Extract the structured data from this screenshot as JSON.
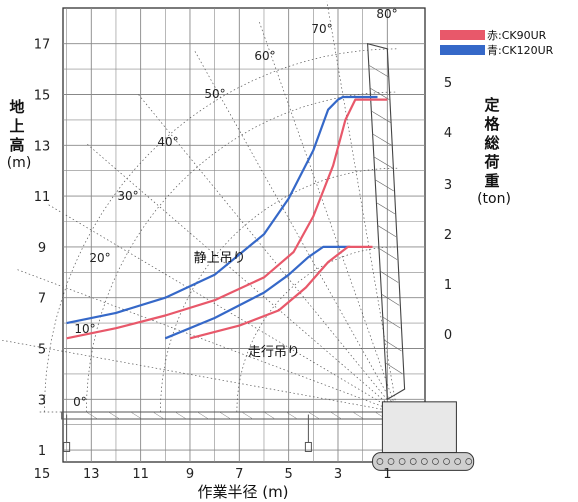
{
  "chart_data": {
    "type": "line",
    "title": "",
    "xlabel": "作業半径 (m)",
    "ylabel_left": [
      "地",
      "上",
      "高"
    ],
    "ylabel_left_unit": "(m)",
    "ylabel_right": [
      "定",
      "格",
      "総",
      "荷",
      "重"
    ],
    "ylabel_right_unit": "(ton)",
    "x_ticks": [
      "15",
      "13",
      "11",
      "9",
      "7",
      "5",
      "3",
      "1"
    ],
    "x_range": [
      15,
      0
    ],
    "y_ticks": [
      "1",
      "3",
      "5",
      "7",
      "9",
      "11",
      "13",
      "15",
      "17"
    ],
    "y_range": [
      0,
      18
    ],
    "right_ticks": [
      "0",
      "1",
      "2",
      "3",
      "4",
      "5"
    ],
    "grid": true,
    "angle_labels": [
      "0°",
      "10°",
      "20°",
      "30°",
      "40°",
      "50°",
      "60°",
      "70°",
      "80°"
    ],
    "angles": [
      0,
      10,
      20,
      30,
      40,
      50,
      60,
      70,
      80
    ],
    "annotations": [
      {
        "text": "静上吊り",
        "x": 7.8,
        "y": 8.4
      },
      {
        "text": "走行吊り",
        "x": 5.6,
        "y": 4.7
      }
    ],
    "legend": {
      "position": "top-right",
      "entries": [
        {
          "label": "赤:CK90UR",
          "color": "#e8586a"
        },
        {
          "label": "青:CK120UR",
          "color": "#3568c8"
        }
      ]
    },
    "series": [
      {
        "group": "静上吊り",
        "color": "#3568c8",
        "points": [
          [
            14,
            6.0
          ],
          [
            12,
            6.4
          ],
          [
            10,
            7.0
          ],
          [
            8,
            7.9
          ],
          [
            6,
            9.5
          ],
          [
            5,
            10.9
          ],
          [
            4,
            12.8
          ],
          [
            3.4,
            14.4
          ],
          [
            3.0,
            14.8
          ],
          [
            2.8,
            14.9
          ],
          [
            1.4,
            14.9
          ]
        ]
      },
      {
        "group": "静上吊り",
        "color": "#e8586a",
        "points": [
          [
            14,
            5.4
          ],
          [
            12,
            5.8
          ],
          [
            10,
            6.3
          ],
          [
            8,
            6.9
          ],
          [
            6,
            7.8
          ],
          [
            4.8,
            8.8
          ],
          [
            4,
            10.2
          ],
          [
            3.2,
            12.2
          ],
          [
            2.7,
            14.0
          ],
          [
            2.3,
            14.8
          ],
          [
            1.0,
            14.8
          ]
        ]
      },
      {
        "group": "走行吊り",
        "color": "#3568c8",
        "points": [
          [
            10,
            5.4
          ],
          [
            8,
            6.2
          ],
          [
            6,
            7.2
          ],
          [
            5,
            7.9
          ],
          [
            4.2,
            8.6
          ],
          [
            3.6,
            9.0
          ],
          [
            2.5,
            9.0
          ]
        ]
      },
      {
        "group": "走行吊り",
        "color": "#e8586a",
        "points": [
          [
            9,
            5.4
          ],
          [
            7,
            5.9
          ],
          [
            5.4,
            6.5
          ],
          [
            4.3,
            7.4
          ],
          [
            3.4,
            8.4
          ],
          [
            2.6,
            9.0
          ],
          [
            1.6,
            9.0
          ]
        ]
      }
    ]
  }
}
